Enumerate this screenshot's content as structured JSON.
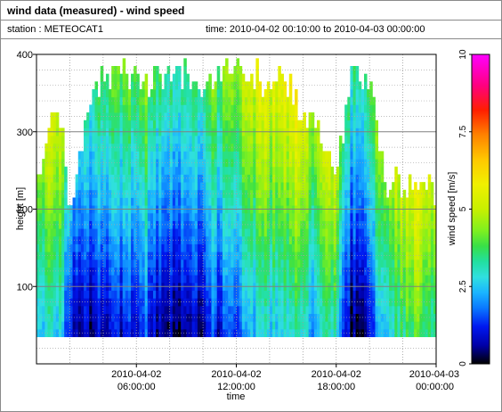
{
  "header": {
    "title": "wind data (measured) - wind speed",
    "station": "station : METEOCAT1",
    "time_range": "time: 2010-04-02 00:10:00 to 2010-04-03 00:00:00"
  },
  "chart_data": {
    "type": "heatmap",
    "xlabel": "time",
    "ylabel": "height [m]",
    "colorbar_label": "wind speed [m/s]",
    "x_range_hours": [
      0,
      24
    ],
    "y_range_m": [
      0,
      400
    ],
    "colorbar_range": [
      0,
      10
    ],
    "x_ticks": [
      {
        "hour": 6,
        "line1": "2010-04-02",
        "line2": "06:00:00"
      },
      {
        "hour": 12,
        "line1": "2010-04-02",
        "line2": "12:00:00"
      },
      {
        "hour": 18,
        "line1": "2010-04-02",
        "line2": "18:00:00"
      },
      {
        "hour": 24,
        "line1": "2010-04-03",
        "line2": "00:00:00"
      }
    ],
    "y_ticks": [
      {
        "value": 100,
        "label": "100"
      },
      {
        "value": 200,
        "label": "200"
      },
      {
        "value": 300,
        "label": "300"
      },
      {
        "value": 400,
        "label": "400"
      }
    ],
    "colorbar_ticks": [
      {
        "value": 0,
        "label": "0"
      },
      {
        "value": 2.5,
        "label": "2.5"
      },
      {
        "value": 5,
        "label": "5"
      },
      {
        "value": 7.5,
        "label": "7.5"
      },
      {
        "value": 10,
        "label": "10"
      }
    ],
    "min_height_m": 35,
    "time_step_hours": 0.1667,
    "column_top_heights_by_hour": [
      [
        0,
        230
      ],
      [
        0.5,
        260
      ],
      [
        1,
        320
      ],
      [
        1.5,
        310
      ],
      [
        2,
        180
      ],
      [
        2.5,
        250
      ],
      [
        3,
        320
      ],
      [
        3.5,
        340
      ],
      [
        4,
        370
      ],
      [
        5,
        370
      ],
      [
        6,
        370
      ],
      [
        7,
        360
      ],
      [
        8,
        370
      ],
      [
        9,
        370
      ],
      [
        10,
        350
      ],
      [
        11,
        370
      ],
      [
        12,
        370
      ],
      [
        13,
        370
      ],
      [
        14,
        360
      ],
      [
        15,
        360
      ],
      [
        16,
        320
      ],
      [
        17,
        300
      ],
      [
        18,
        250
      ],
      [
        19,
        370
      ],
      [
        20,
        360
      ],
      [
        20.5,
        300
      ],
      [
        21,
        220
      ],
      [
        21.5,
        250
      ],
      [
        22,
        210
      ],
      [
        22.5,
        240
      ],
      [
        23,
        230
      ],
      [
        23.5,
        230
      ],
      [
        24,
        220
      ]
    ],
    "mean_speed_by_hour": [
      [
        0,
        3.2
      ],
      [
        1,
        3.4
      ],
      [
        1.5,
        3.0
      ],
      [
        2,
        1.5
      ],
      [
        3,
        1.1
      ],
      [
        4,
        1.6
      ],
      [
        5,
        1.4
      ],
      [
        6,
        1.7
      ],
      [
        6.5,
        2.3
      ],
      [
        7,
        1.4
      ],
      [
        8,
        0.9
      ],
      [
        9,
        1.0
      ],
      [
        10,
        1.1
      ],
      [
        10.5,
        2.2
      ],
      [
        11,
        1.5
      ],
      [
        11.5,
        2.5
      ],
      [
        12,
        1.9
      ],
      [
        12.5,
        3.0
      ],
      [
        13,
        2.7
      ],
      [
        13.5,
        3.5
      ],
      [
        14,
        3.0
      ],
      [
        15,
        3.4
      ],
      [
        15.5,
        3.8
      ],
      [
        16,
        3.5
      ],
      [
        16.5,
        2.6
      ],
      [
        17,
        3.6
      ],
      [
        17.5,
        4.0
      ],
      [
        18,
        3.5
      ],
      [
        18.5,
        1.5
      ],
      [
        19,
        0.8
      ],
      [
        20,
        1.0
      ],
      [
        20.5,
        3.0
      ],
      [
        21,
        3.4
      ],
      [
        21.5,
        3.6
      ],
      [
        22,
        4.0
      ],
      [
        22.5,
        4.3
      ],
      [
        23,
        4.4
      ],
      [
        23.5,
        4.0
      ],
      [
        24,
        3.6
      ]
    ],
    "speed_increase_per_100m": 0.9,
    "colormap": [
      [
        0,
        "#000000"
      ],
      [
        0.6,
        "#0000a8"
      ],
      [
        1.2,
        "#0018f0"
      ],
      [
        1.8,
        "#0a78ff"
      ],
      [
        2.3,
        "#1ab4ff"
      ],
      [
        2.8,
        "#30e0e0"
      ],
      [
        3.3,
        "#22e0a0"
      ],
      [
        3.8,
        "#38e048"
      ],
      [
        4.3,
        "#7ef020"
      ],
      [
        5.0,
        "#c8f000"
      ],
      [
        5.8,
        "#f0f000"
      ],
      [
        6.6,
        "#ffc800"
      ],
      [
        7.4,
        "#ff8200"
      ],
      [
        8.2,
        "#ff1e00"
      ],
      [
        9.0,
        "#ff0080"
      ],
      [
        10,
        "#ff00ff"
      ]
    ]
  }
}
